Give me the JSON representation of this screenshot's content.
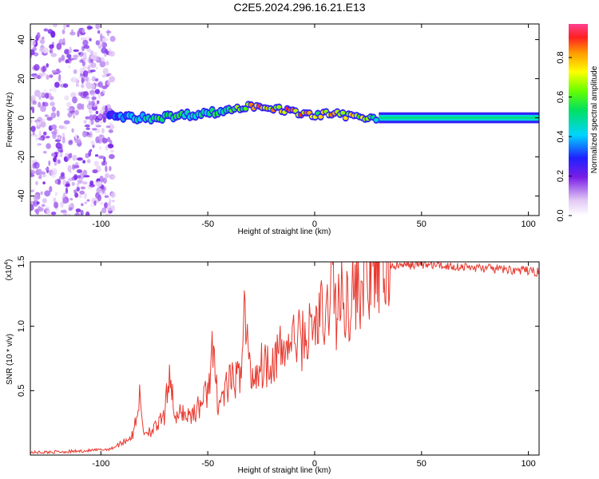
{
  "title": "C2E5.2024.296.16.21.E13",
  "chart_data": [
    {
      "type": "heatmap",
      "xlabel": "Height of straight line (km)",
      "ylabel": "Frequency (Hz)",
      "xlim": [
        -133,
        105
      ],
      "ylim": [
        -50,
        48
      ],
      "x_ticks": [
        -100,
        -50,
        0,
        50,
        100
      ],
      "x_tick_labels": [
        "-100",
        "-50",
        "0",
        "50",
        "100"
      ],
      "y_ticks": [
        40,
        20,
        0,
        -20,
        -40
      ],
      "y_tick_labels": [
        "40",
        "20",
        "0",
        "-20",
        "-40"
      ],
      "colorbar": {
        "label": "Normalized spectral amplitude",
        "range": [
          0,
          0.97
        ],
        "ticks": [
          0.0,
          0.2,
          0.4,
          0.6,
          0.8
        ],
        "tick_labels": [
          "0.0",
          "0.2",
          "0.4",
          "0.6",
          "0.8"
        ]
      },
      "ridge": {
        "x": [
          -95,
          -85,
          -75,
          -65,
          -55,
          -45,
          -35,
          -30,
          -25,
          -20,
          -15,
          -10,
          -5,
          0,
          5,
          10,
          15,
          20,
          25,
          30,
          40,
          60,
          80,
          105
        ],
        "y": [
          1,
          0,
          0,
          1,
          2,
          3,
          5,
          6,
          6,
          5,
          4,
          3,
          2,
          1,
          2,
          2,
          1,
          1,
          0,
          0,
          0,
          0,
          0,
          0
        ],
        "amplitude": [
          0.3,
          0.5,
          0.55,
          0.6,
          0.5,
          0.55,
          0.65,
          0.95,
          0.95,
          0.85,
          0.9,
          0.9,
          0.85,
          0.7,
          0.85,
          0.8,
          0.75,
          0.7,
          0.7,
          0.45,
          0.4,
          0.4,
          0.4,
          0.4
        ]
      }
    },
    {
      "type": "line",
      "xlabel": "Height of straight line (km)",
      "ylabel": "SNR (10 * v/v)",
      "y_multiplier": "(x10",
      "y_multiplier_exp": "4",
      "y_multiplier_close": ")",
      "xlim": [
        -133,
        105
      ],
      "ylim": [
        0,
        15000
      ],
      "x_ticks": [
        -100,
        -50,
        0,
        50,
        100
      ],
      "x_tick_labels": [
        "-100",
        "-50",
        "0",
        "50",
        "100"
      ],
      "y_ticks": [
        5000,
        10000,
        15000
      ],
      "y_tick_labels": [
        "0.5",
        "1.0",
        "1.5"
      ],
      "series": [
        {
          "color": "#e8392f",
          "x": [
            -133,
            -120,
            -110,
            -100,
            -95,
            -90,
            -85,
            -82,
            -80,
            -75,
            -70,
            -68,
            -65,
            -62,
            -60,
            -55,
            -50,
            -48,
            -45,
            -40,
            -35,
            -33,
            -30,
            -25,
            -20,
            -15,
            -10,
            -5,
            0,
            3,
            5,
            8,
            10,
            12,
            15,
            20,
            25,
            30,
            35,
            40,
            50,
            60,
            70,
            80,
            90,
            100,
            105
          ],
          "y": [
            200,
            250,
            300,
            400,
            500,
            1000,
            1500,
            4500,
            1800,
            2000,
            3000,
            7000,
            2500,
            3500,
            3000,
            3500,
            5000,
            8000,
            4000,
            5500,
            6000,
            11500,
            6000,
            7000,
            7500,
            8000,
            9000,
            9000,
            10000,
            11000,
            9500,
            14500,
            11000,
            12000,
            12000,
            13000,
            13800,
            14500,
            14700,
            14700,
            14800,
            14700,
            14600,
            14500,
            14400,
            14300,
            14200
          ]
        }
      ]
    }
  ]
}
